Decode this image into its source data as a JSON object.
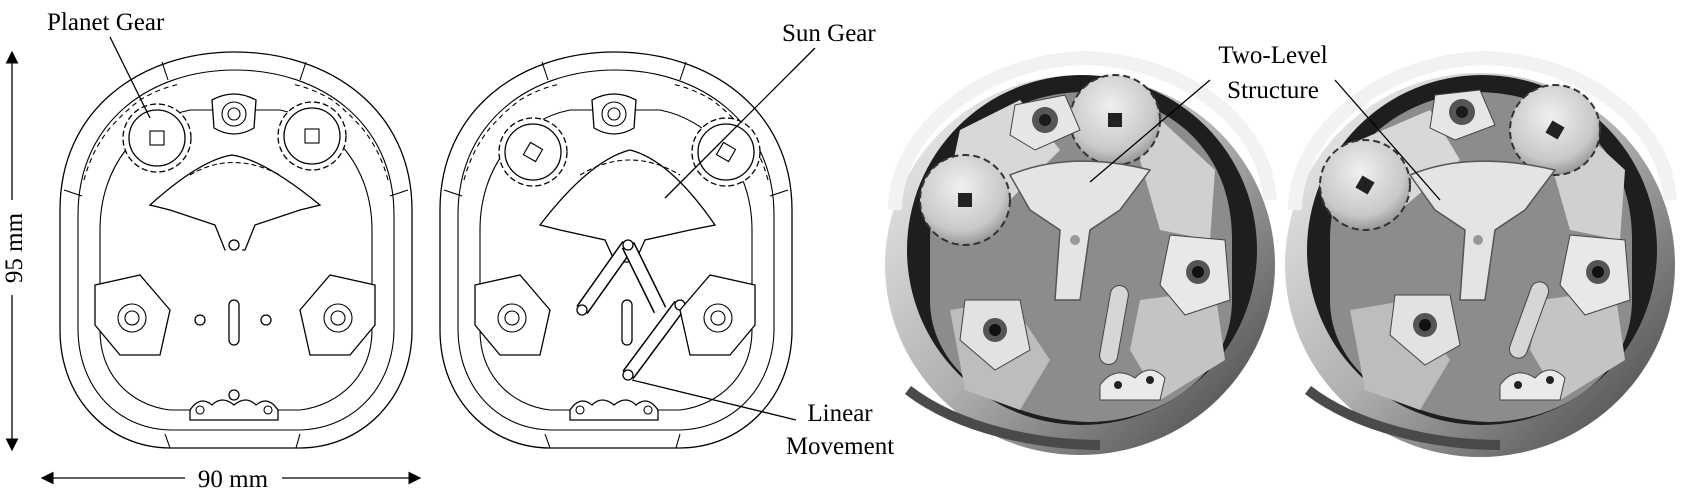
{
  "labels": {
    "planet_gear": "Planet Gear",
    "sun_gear": "Sun Gear",
    "two_level_line1": "Two-Level",
    "two_level_line2": "Structure",
    "linear_line1": "Linear",
    "linear_line2": "Movement",
    "height_dim": "95 mm",
    "width_dim": "90 mm"
  },
  "colors": {
    "line": "#000000",
    "render_light": "#dcdcdc",
    "render_mid": "#9a9a9a",
    "render_dark": "#3a3a3a"
  }
}
